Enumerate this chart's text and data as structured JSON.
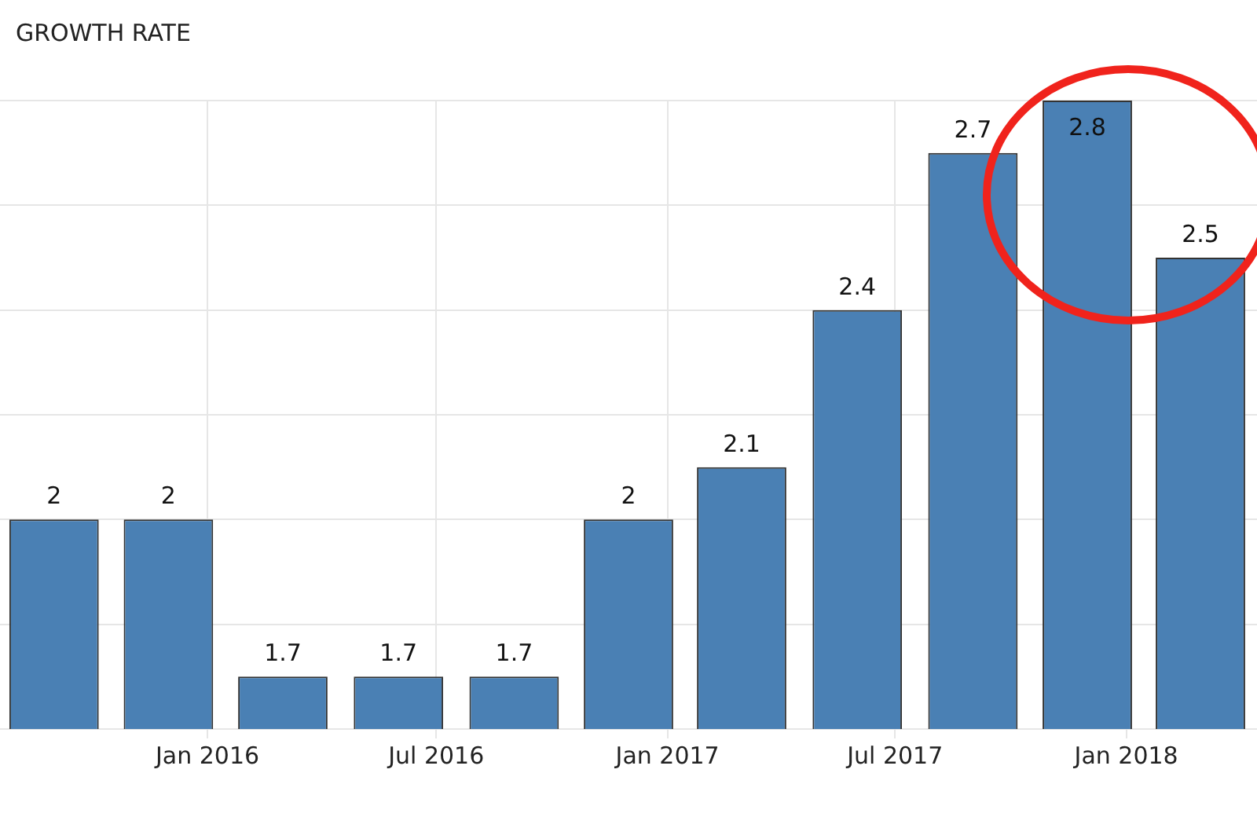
{
  "chart_data": {
    "type": "bar",
    "title": "GROWTH RATE",
    "x": [
      "2015-09-01",
      "2015-12-01",
      "2016-03-01",
      "2016-06-01",
      "2016-09-01",
      "2016-12-01",
      "2017-03-01",
      "2017-06-01",
      "2017-09-01",
      "2017-12-01",
      "2018-03-01"
    ],
    "values": [
      2,
      2,
      1.7,
      1.7,
      1.7,
      2,
      2.1,
      2.4,
      2.7,
      2.8,
      2.5
    ],
    "color": "#4a80b4",
    "xlim": [
      "2015-07-20",
      "2018-04-15"
    ],
    "xticks": [
      {
        "value": "2016-01-01",
        "label": "Jan 2016"
      },
      {
        "value": "2016-07-01",
        "label": "Jul 2016"
      },
      {
        "value": "2017-01-01",
        "label": "Jan 2017"
      },
      {
        "value": "2017-07-01",
        "label": "Jul 2017"
      },
      {
        "value": "2018-01-01",
        "label": "Jan 2018"
      }
    ],
    "ylim": [
      1.6,
      2.8
    ],
    "yticks": [
      {
        "value": 1.6,
        "label": null
      },
      {
        "value": 1.8,
        "label": null
      },
      {
        "value": 2,
        "label": null
      },
      {
        "value": 2.2,
        "label": null
      },
      {
        "value": 2.4,
        "label": null
      },
      {
        "value": 2.6,
        "label": null
      },
      {
        "value": 2.8,
        "label": null
      }
    ],
    "tick_labels": "x",
    "grid": true,
    "data_labels": true,
    "legend": false
  }
}
